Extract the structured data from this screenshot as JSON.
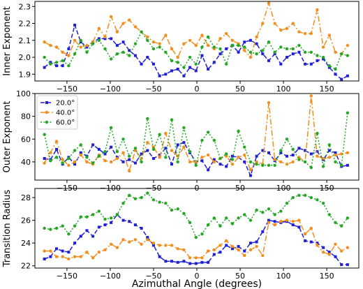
{
  "chart_data": [
    {
      "type": "line",
      "ylabel": "Inner Exponent",
      "ylim": [
        1.86,
        2.33
      ],
      "yticks": [
        1.9,
        2.0,
        2.1,
        2.2,
        2.3
      ],
      "ytick_labels": [
        "1.9",
        "2.0",
        "2.1",
        "2.2",
        "2.3"
      ],
      "xlim": [
        -187,
        187
      ],
      "xticks": [
        -150,
        -100,
        -50,
        0,
        50,
        100,
        150
      ],
      "xtick_labels": [
        "−150",
        "−100",
        "−50",
        "0",
        "50",
        "100",
        "150"
      ],
      "grid": false,
      "x": [
        -176,
        -169,
        -162,
        -155,
        -148,
        -141,
        -134,
        -127,
        -120,
        -113,
        -106,
        -99,
        -92,
        -85,
        -78,
        -71,
        -64,
        -57,
        -50,
        -43,
        -36,
        -29,
        -22,
        -15,
        -8,
        -1,
        6,
        13,
        20,
        27,
        34,
        41,
        48,
        55,
        62,
        69,
        76,
        83,
        90,
        97,
        104,
        111,
        118,
        125,
        132,
        139,
        146,
        153,
        160,
        167,
        174
      ],
      "series": [
        {
          "name": "20.0°",
          "color": "#1f1fd6",
          "values": [
            1.94,
            1.97,
            1.95,
            1.95,
            2.05,
            2.19,
            2.09,
            2.06,
            2.09,
            2.11,
            2.11,
            2.11,
            2.07,
            2.09,
            2.04,
            2.01,
            1.96,
            2.0,
            1.96,
            1.89,
            1.9,
            1.92,
            1.93,
            1.89,
            1.94,
            1.92,
            2.01,
            1.93,
            1.97,
            2.02,
            2.05,
            2.07,
            2.03,
            2.09,
            2.1,
            2.08,
            2.02,
            1.98,
            2.02,
            1.96,
            2.0,
            2.02,
            2.03,
            1.96,
            1.96,
            1.98,
            1.99,
            1.94,
            1.9,
            1.87,
            1.89
          ]
        },
        {
          "name": "40.0°",
          "color": "#f28e1c",
          "values": [
            2.09,
            2.07,
            2.06,
            2.03,
            2.01,
            2.1,
            2.06,
            2.07,
            2.09,
            2.17,
            2.12,
            2.24,
            2.15,
            2.2,
            2.22,
            2.18,
            2.15,
            2.12,
            2.09,
            2.08,
            2.13,
            2.05,
            2.0,
            2.08,
            2.1,
            2.07,
            2.13,
            2.07,
            2.05,
            2.11,
            2.14,
            2.1,
            2.08,
            2.04,
            2.0,
            2.12,
            2.2,
            2.32,
            2.2,
            2.16,
            2.17,
            2.2,
            2.15,
            2.14,
            2.14,
            2.28,
            2.06,
            2.13,
            2.03,
            2.02,
            2.07
          ]
        },
        {
          "name": "60.0°",
          "color": "#22a822",
          "values": [
            2.0,
            1.96,
            1.97,
            1.98,
            1.95,
            2.02,
            2.1,
            2.03,
            2.08,
            2.1,
            2.05,
            1.99,
            2.02,
            2.03,
            2.01,
            2.08,
            2.15,
            2.1,
            2.05,
            2.06,
            2.03,
            1.98,
            1.97,
            1.94,
            2.0,
            1.96,
            2.06,
            2.12,
            2.06,
            2.05,
            1.96,
            2.07,
            2.07,
            2.06,
            2.03,
            2.02,
            2.04,
            2.09,
            2.03,
            2.06,
            2.05,
            2.05,
            2.07,
            2.03,
            2.03,
            2.01,
            2.0,
            1.95,
            1.93,
            2.02,
            2.01
          ]
        }
      ]
    },
    {
      "type": "line",
      "ylabel": "Outer Exponent",
      "ylim": [
        24,
        100
      ],
      "yticks": [
        40,
        60,
        80,
        100
      ],
      "ytick_labels": [
        "40",
        "60",
        "80",
        "100"
      ],
      "xlim": [
        -187,
        187
      ],
      "xticks": [
        -150,
        -100,
        -50,
        0,
        50,
        100,
        150
      ],
      "xtick_labels": [
        "−150",
        "−100",
        "−50",
        "0",
        "50",
        "100",
        "150"
      ],
      "legend": {
        "position": "upper-left",
        "entries": [
          "20.0°",
          "40.0°",
          "60.0°"
        ]
      },
      "grid": false,
      "x": [
        -176,
        -169,
        -162,
        -155,
        -148,
        -141,
        -134,
        -127,
        -120,
        -113,
        -106,
        -99,
        -92,
        -85,
        -78,
        -71,
        -64,
        -57,
        -50,
        -43,
        -36,
        -29,
        -22,
        -15,
        -8,
        -1,
        6,
        13,
        20,
        27,
        34,
        41,
        48,
        55,
        62,
        69,
        76,
        83,
        90,
        97,
        104,
        111,
        118,
        125,
        132,
        139,
        146,
        153,
        160,
        167,
        174
      ],
      "series": [
        {
          "name": "20.0°",
          "values": [
            43,
            42,
            51,
            38,
            44,
            38,
            48,
            45,
            55,
            51,
            47,
            53,
            44,
            40,
            42,
            39,
            47,
            50,
            43,
            46,
            52,
            38,
            55,
            57,
            48,
            40,
            41,
            33,
            42,
            38,
            36,
            45,
            44,
            40,
            28,
            45,
            50,
            48,
            41,
            48,
            45,
            46,
            52,
            50,
            47,
            49,
            42,
            50,
            48,
            36,
            37
          ]
        },
        {
          "name": "40.0°",
          "values": [
            39,
            48,
            58,
            42,
            37,
            40,
            46,
            40,
            38,
            46,
            41,
            40,
            43,
            48,
            32,
            50,
            43,
            57,
            53,
            44,
            65,
            50,
            45,
            53,
            40,
            40,
            44,
            46,
            40,
            43,
            45,
            38,
            44,
            46,
            33,
            40,
            38,
            92,
            42,
            40,
            38,
            40,
            44,
            40,
            98,
            45,
            43,
            44,
            46,
            47,
            48
          ]
        },
        {
          "name": "60.0°",
          "values": [
            64,
            41,
            44,
            39,
            43,
            50,
            55,
            44,
            39,
            45,
            49,
            70,
            49,
            60,
            45,
            52,
            40,
            78,
            51,
            64,
            44,
            77,
            40,
            70,
            49,
            37,
            59,
            66,
            59,
            43,
            47,
            42,
            67,
            53,
            40,
            38,
            37,
            37,
            37,
            50,
            60,
            51,
            42,
            40,
            35,
            65,
            36,
            55,
            40,
            37,
            83
          ]
        }
      ]
    },
    {
      "type": "line",
      "ylabel": "Transition Radius",
      "xlabel": "Azimuthal Angle (degrees)",
      "ylim": [
        21.8,
        28.8
      ],
      "yticks": [
        22,
        24,
        26,
        28
      ],
      "ytick_labels": [
        "22",
        "24",
        "26",
        "28"
      ],
      "xlim": [
        -187,
        187
      ],
      "xticks": [
        -150,
        -100,
        -50,
        0,
        50,
        100,
        150
      ],
      "xtick_labels": [
        "−150",
        "−100",
        "−50",
        "0",
        "50",
        "100",
        "150"
      ],
      "grid": false,
      "x": [
        -176,
        -169,
        -162,
        -155,
        -148,
        -141,
        -134,
        -127,
        -120,
        -113,
        -106,
        -99,
        -92,
        -85,
        -78,
        -71,
        -64,
        -57,
        -50,
        -43,
        -36,
        -29,
        -22,
        -15,
        -8,
        -1,
        6,
        13,
        20,
        27,
        34,
        41,
        48,
        55,
        62,
        69,
        76,
        83,
        90,
        97,
        104,
        111,
        118,
        125,
        132,
        139,
        146,
        153,
        160,
        167,
        174
      ],
      "series": [
        {
          "name": "20.0°",
          "values": [
            22.6,
            22.8,
            23.5,
            23.3,
            23.2,
            24.0,
            24.6,
            25.1,
            24.6,
            25.4,
            25.6,
            25.8,
            26.5,
            26.0,
            25.9,
            25.6,
            25.3,
            24.5,
            23.8,
            22.8,
            22.4,
            22.4,
            22.3,
            22.4,
            22.2,
            22.2,
            22.3,
            22.3,
            23.0,
            23.2,
            23.8,
            23.5,
            23.7,
            23.3,
            24.0,
            24.1,
            25.0,
            26.0,
            25.9,
            25.8,
            25.9,
            25.6,
            25.4,
            24.2,
            24.1,
            24.0,
            23.6,
            23.2,
            22.8,
            22.1,
            22.1
          ]
        },
        {
          "name": "40.0°",
          "values": [
            23.3,
            23.3,
            22.8,
            22.8,
            22.6,
            22.8,
            22.8,
            23.2,
            22.7,
            23.2,
            23.4,
            23.9,
            23.6,
            24.3,
            24.1,
            24.3,
            23.9,
            24.3,
            24.0,
            23.8,
            23.8,
            23.8,
            23.5,
            23.4,
            22.7,
            22.7,
            22.7,
            23.3,
            23.4,
            23.8,
            24.2,
            23.7,
            23.4,
            22.9,
            23.4,
            23.7,
            22.9,
            25.8,
            25.6,
            25.9,
            26.0,
            25.9,
            26.0,
            24.8,
            25.3,
            23.8,
            23.2,
            23.0,
            23.9,
            23.3,
            23.6
          ]
        },
        {
          "name": "60.0°",
          "values": [
            25.3,
            25.2,
            25.3,
            25.5,
            24.8,
            25.5,
            26.3,
            26.3,
            26.5,
            26.8,
            26.1,
            26.2,
            26.5,
            27.5,
            28.2,
            27.9,
            28.0,
            28.4,
            27.8,
            27.6,
            27.5,
            26.9,
            27.0,
            26.6,
            25.8,
            24.5,
            24.8,
            25.6,
            26.2,
            25.5,
            26.2,
            25.7,
            26.2,
            26.5,
            26.0,
            26.9,
            26.7,
            27.0,
            26.5,
            26.8,
            27.5,
            28.0,
            28.2,
            28.2,
            28.0,
            27.8,
            27.5,
            26.5,
            25.8,
            25.5,
            26.2
          ]
        }
      ]
    }
  ]
}
